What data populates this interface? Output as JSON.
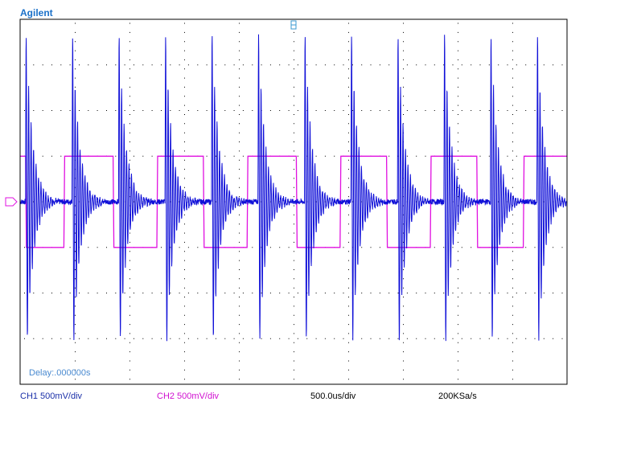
{
  "brand": "Agilent",
  "status_bar": {
    "ch1_scale": "CH1 500mV/div",
    "ch2_scale": "CH2 500mV/div",
    "timebase": "500.0us/div",
    "sample_rate": "200KSa/s"
  },
  "delay_readout": "Delay:.000000s",
  "colors": {
    "ch1": "#1010d8",
    "ch2": "#e010e0",
    "grid_dots": "#000000",
    "frame": "#000000"
  },
  "chart_data": {
    "type": "line",
    "grid": {
      "divisions_x": 10,
      "divisions_y": 8,
      "style": "dotted"
    },
    "x_units": "div",
    "xlim": [
      0,
      10
    ],
    "ylim": [
      -4,
      4
    ],
    "series": [
      {
        "name": "CH1",
        "kind": "damped-oscillation-bursts",
        "baseline_div": 0.0,
        "burst_times_div": [
          0.1,
          0.95,
          1.8,
          2.65,
          3.5,
          4.35,
          5.2,
          6.05,
          6.9,
          7.75,
          8.6,
          9.45
        ],
        "burst_peak_div": 4.0,
        "decay_div": 0.12,
        "oscillation_period_div": 0.045
      },
      {
        "name": "CH2",
        "kind": "square",
        "high_div": 1.0,
        "low_div": -1.0,
        "edges_div": [
          0.1,
          0.8,
          1.7,
          2.5,
          3.35,
          4.15,
          5.05,
          5.85,
          6.7,
          7.5,
          8.35,
          9.2
        ],
        "initial_state": "high"
      }
    ]
  }
}
